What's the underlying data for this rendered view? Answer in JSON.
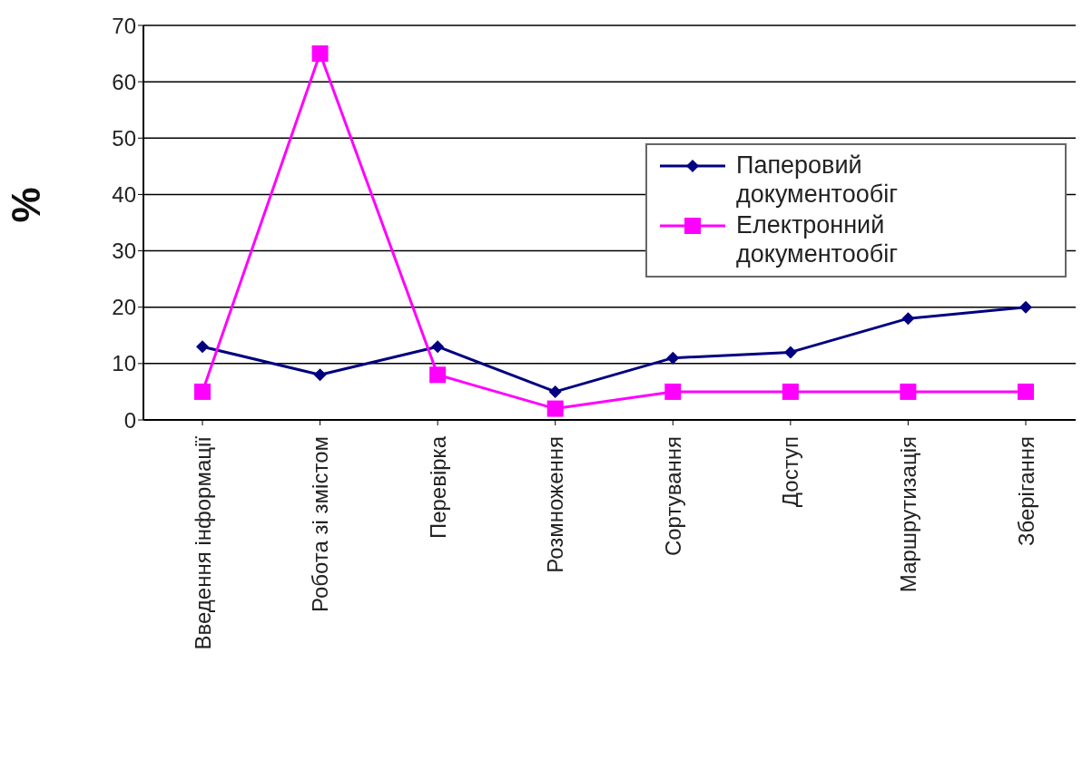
{
  "chart_data": {
    "type": "line",
    "ylabel": "%",
    "categories": [
      "Введення інформації",
      "Робота зі змістом",
      "Перевірка",
      "Розмноження",
      "Сортування",
      "Доступ",
      "Маршрутизація",
      "Зберігання"
    ],
    "series": [
      {
        "name": "Паперовий документообіг",
        "color": "#000080",
        "marker": "diamond",
        "values": [
          13,
          8,
          13,
          5,
          11,
          12,
          18,
          20
        ]
      },
      {
        "name": "Електронний документообіг",
        "color": "#ff00ff",
        "marker": "square",
        "values": [
          5,
          65,
          8,
          2,
          5,
          5,
          5,
          5
        ]
      }
    ],
    "ylim": [
      0,
      70
    ],
    "yticks": [
      0,
      10,
      20,
      30,
      40,
      50,
      60,
      70
    ],
    "grid": "y",
    "legend": "top right"
  }
}
